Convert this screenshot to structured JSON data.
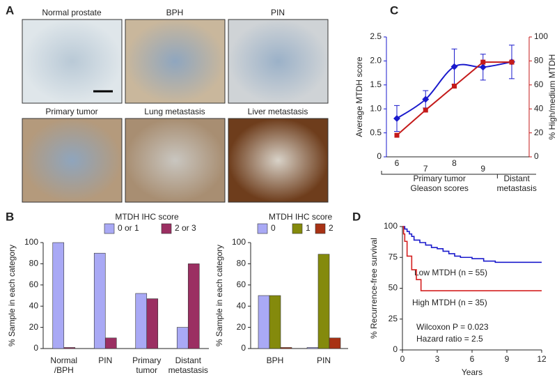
{
  "panel_labels": [
    "A",
    "B",
    "C",
    "D"
  ],
  "images": [
    {
      "label": "Normal prostate"
    },
    {
      "label": "BPH"
    },
    {
      "label": "PIN"
    },
    {
      "label": "Primary tumor"
    },
    {
      "label": "Lung metastasis"
    },
    {
      "label": "Liver metastasis"
    }
  ],
  "chart_data": [
    {
      "type": "bar",
      "legend_title": "MTDH IHC score",
      "ylabel": "% Sample in each category",
      "categories": [
        [
          "Normal",
          "/BPH"
        ],
        [
          "PIN"
        ],
        [
          "Primary",
          "tumor"
        ],
        [
          "Distant",
          "metastasis"
        ]
      ],
      "series": [
        {
          "name": "0 or 1",
          "color": "#a9a9f5",
          "values": [
            100,
            90,
            52,
            20
          ]
        },
        {
          "name": "2 or 3",
          "color": "#9b2f62",
          "values": [
            1,
            10,
            47,
            80
          ]
        }
      ],
      "ylim": [
        0,
        100
      ],
      "yticks": [
        0,
        20,
        40,
        60,
        80,
        100
      ]
    },
    {
      "type": "bar",
      "legend_title": "MTDH IHC score",
      "ylabel": "% Sample in each category",
      "categories": [
        [
          "BPH"
        ],
        [
          "PIN"
        ]
      ],
      "series": [
        {
          "name": "0",
          "color": "#a9a9f5",
          "values": [
            50,
            1
          ]
        },
        {
          "name": "1",
          "color": "#848a0c",
          "values": [
            50,
            89
          ]
        },
        {
          "name": "2",
          "color": "#a83214",
          "values": [
            1,
            10
          ]
        }
      ],
      "ylim": [
        0,
        100
      ],
      "yticks": [
        0,
        20,
        40,
        60,
        80,
        100
      ]
    },
    {
      "type": "line",
      "ylabel": "Average MTDH score",
      "y2label": "% High/medium MTDH",
      "categories": [
        "6",
        "7",
        "8",
        "9",
        null
      ],
      "x_groups": [
        {
          "label": [
            "Primary tumor",
            "Gleason scores"
          ]
        },
        {
          "label": [
            "Distant",
            "metastasis"
          ]
        }
      ],
      "series": [
        {
          "name": "Average MTDH score",
          "color": "#1a1acc",
          "values": [
            0.8,
            1.2,
            1.88,
            1.87,
            1.98
          ],
          "errors": [
            0.27,
            0.18,
            0.37,
            0.27,
            0.35
          ]
        },
        {
          "name": "% High/medium MTDH",
          "color": "#c41a1a",
          "axis": "y2",
          "values": [
            18,
            39,
            59,
            79,
            79
          ]
        }
      ],
      "ylim": [
        0,
        2.5
      ],
      "yticks": [
        0,
        0.5,
        {
          "value": 1,
          "label": "1.0"
        },
        1.5,
        {
          "value": 2,
          "label": "2.0"
        },
        2.5
      ],
      "y2lim": [
        0,
        100
      ],
      "y2ticks": [
        0,
        20,
        40,
        60,
        80,
        100
      ]
    },
    {
      "type": "step",
      "xlabel": "Years",
      "ylabel": "% Recurrence-free survival",
      "series": [
        {
          "name": "Low MTDH (n = 55)",
          "color": "#1a1acc",
          "x": [
            0,
            0.2,
            0.4,
            0.6,
            0.8,
            1.0,
            1.5,
            2,
            2.5,
            3,
            3.5,
            4,
            4.5,
            5,
            6,
            7,
            8,
            9,
            12
          ],
          "values": [
            100,
            98,
            96,
            94,
            92,
            89,
            87,
            85,
            83,
            82,
            80,
            78,
            76,
            75,
            74,
            72,
            71,
            71,
            71
          ]
        },
        {
          "name": "High MTDH (n = 35)",
          "color": "#d42020",
          "x": [
            0,
            0.1,
            0.2,
            0.4,
            0.8,
            1.2,
            1.6,
            2,
            12
          ],
          "values": [
            100,
            94,
            88,
            76,
            65,
            57,
            48,
            48,
            48
          ]
        }
      ],
      "annotations": [
        "Wilcoxon P = 0.023",
        "Hazard ratio = 2.5"
      ],
      "xlim": [
        0,
        12
      ],
      "xticks": [
        0,
        3,
        6,
        9,
        12
      ],
      "ylim": [
        0,
        100
      ],
      "yticks": [
        0,
        25,
        50,
        75,
        100
      ]
    }
  ]
}
